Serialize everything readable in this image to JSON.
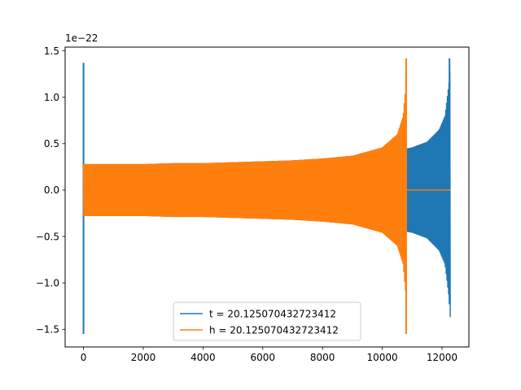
{
  "chart_data": {
    "type": "line",
    "title": "",
    "xlabel": "",
    "ylabel": "",
    "xlim": [
      -615,
      12900
    ],
    "ylim": [
      -1.69,
      1.54
    ],
    "y_offset_label": "1e−22",
    "x_ticks": [
      0,
      2000,
      4000,
      6000,
      8000,
      10000,
      12000
    ],
    "x_tick_labels": [
      "0",
      "2000",
      "4000",
      "6000",
      "8000",
      "10000",
      "12000"
    ],
    "y_ticks": [
      -1.5,
      -1.0,
      -0.5,
      0.0,
      0.5,
      1.0,
      1.5
    ],
    "y_tick_labels": [
      "−1.5",
      "−1.0",
      "−0.5",
      "0.0",
      "0.5",
      "1.0",
      "1.5"
    ],
    "grid": false,
    "legend_position": "lower center",
    "series": [
      {
        "name": "t = 20.125070432723412",
        "color": "#1f77b4",
        "envelope_x": [
          0,
          1000,
          2000,
          3000,
          4000,
          5000,
          6000,
          7000,
          8000,
          9000,
          10000,
          11000,
          11500,
          11900,
          12100,
          12250,
          12280
        ],
        "envelope_amplitude": [
          0.28,
          0.28,
          0.28,
          0.29,
          0.29,
          0.3,
          0.31,
          0.32,
          0.34,
          0.37,
          0.4,
          0.46,
          0.52,
          0.65,
          0.8,
          1.2,
          1.4
        ],
        "spikes": [
          {
            "x": 0,
            "min": -1.55,
            "max": 1.37
          },
          {
            "x": 12250,
            "min": -1.23,
            "max": 1.42
          }
        ]
      },
      {
        "name": "h = 20.125070432723412",
        "color": "#ff7f0e",
        "envelope_x": [
          0,
          1000,
          2000,
          3000,
          4000,
          5000,
          6000,
          7000,
          8000,
          9000,
          10000,
          10500,
          10700,
          10780,
          10800
        ],
        "envelope_amplitude": [
          0.28,
          0.28,
          0.28,
          0.29,
          0.29,
          0.3,
          0.31,
          0.32,
          0.34,
          0.37,
          0.46,
          0.6,
          0.8,
          1.1,
          1.4
        ],
        "spikes": [
          {
            "x": 10800,
            "min": -1.55,
            "max": 1.42
          }
        ],
        "flat_after": [
          10800,
          12280
        ]
      }
    ]
  }
}
